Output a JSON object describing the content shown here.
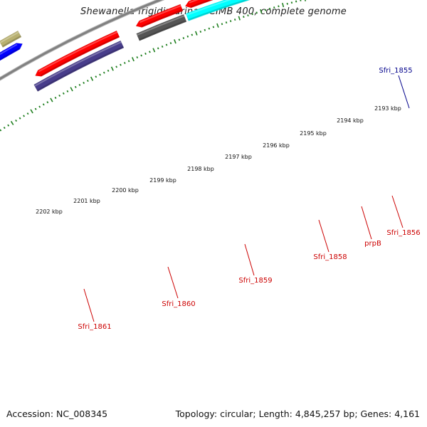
{
  "title": "Shewanella frigidimarina NCIMB 400, complete genome",
  "footer": {
    "accession": "Accession: NC_008345",
    "topology": "Topology: circular; Length: 4,845,257 bp; Genes: 4,161"
  },
  "kbp_ticks": [
    "2193 kbp",
    "2194 kbp",
    "2195 kbp",
    "2196 kbp",
    "2197 kbp",
    "2198 kbp",
    "2199 kbp",
    "2200 kbp",
    "2201 kbp",
    "2202 kbp"
  ],
  "gene_labels": [
    "Sfri_1855",
    "Sfri_1856",
    "prpB",
    "Sfri_1858",
    "Sfri_1859",
    "Sfri_1860",
    "Sfri_1861"
  ],
  "colors": {
    "backbone": "#808080",
    "tick": "#1f7f1f",
    "cds": "#ff0000",
    "forward_gene": "#0000ff",
    "label_blue": "#00008b",
    "label_red": "#cc0000",
    "cyan": "#00ffff",
    "teal": "#20b2aa",
    "orange": "#ff8c00",
    "dark_gray": "#555555",
    "slate": "#483d8b",
    "olive": "#b8b070"
  }
}
